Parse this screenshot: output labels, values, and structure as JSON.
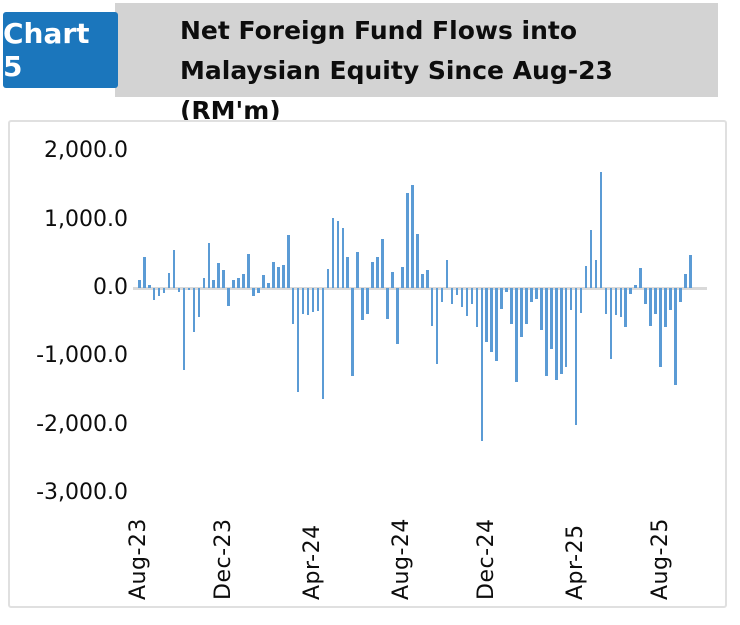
{
  "header": {
    "badge": "Chart 5",
    "title": "Net Foreign Fund Flows into Malaysian Equity Since Aug-23 (RM'm)",
    "badge_color": "#1b76bc",
    "strip_color": "#d3d3d3"
  },
  "chart_data": {
    "type": "bar",
    "title": "Net Foreign Fund Flows into Malaysian Equity Since Aug-23 (RM'm)",
    "unit": "RM'm",
    "frequency": "weekly",
    "bar_color": "#5b9bd5",
    "axis_line_color": "#d9d9d9",
    "grid": false,
    "legend": false,
    "ylim": [
      -3000,
      2000
    ],
    "yticks": [
      {
        "label": "2,000.0",
        "value": 2000
      },
      {
        "label": "1,000.0",
        "value": 1000
      },
      {
        "label": "0.0",
        "value": 0
      },
      {
        "label": "-1,000.0",
        "value": -1000
      },
      {
        "label": "-2,000.0",
        "value": -2000
      },
      {
        "label": "-3,000.0",
        "value": -3000
      }
    ],
    "xticks": [
      {
        "label": "Aug-23",
        "index": 0
      },
      {
        "label": "Dec-23",
        "index": 17
      },
      {
        "label": "Apr-24",
        "index": 35
      },
      {
        "label": "Aug-24",
        "index": 53
      },
      {
        "label": "Dec-24",
        "index": 70
      },
      {
        "label": "Apr-25",
        "index": 88
      },
      {
        "label": "Aug-25",
        "index": 105
      }
    ],
    "values": [
      120,
      460,
      50,
      -170,
      -120,
      -75,
      220,
      550,
      -60,
      -1200,
      -25,
      -640,
      -420,
      150,
      660,
      120,
      370,
      260,
      -270,
      110,
      150,
      210,
      500,
      -120,
      -75,
      185,
      75,
      380,
      310,
      330,
      770,
      -520,
      -1520,
      -380,
      -400,
      -350,
      -330,
      -1620,
      280,
      1030,
      980,
      870,
      460,
      -1280,
      530,
      -470,
      -380,
      380,
      450,
      720,
      -450,
      230,
      -815,
      300,
      1390,
      1500,
      790,
      210,
      260,
      -550,
      -1110,
      -205,
      405,
      -230,
      -105,
      -280,
      -415,
      -230,
      -570,
      -2230,
      -790,
      -940,
      -1060,
      -300,
      -60,
      -520,
      -1375,
      -715,
      -520,
      -205,
      -155,
      -620,
      -1280,
      -890,
      -1350,
      -1250,
      -1160,
      -317,
      -2010,
      -366,
      317,
      844,
      405,
      1700,
      -376,
      -1045,
      -400,
      -424,
      -571,
      -83,
      39,
      298,
      -229,
      -561,
      -376,
      -1156,
      -571,
      -317,
      -1424,
      -205,
      200,
      478
    ]
  }
}
